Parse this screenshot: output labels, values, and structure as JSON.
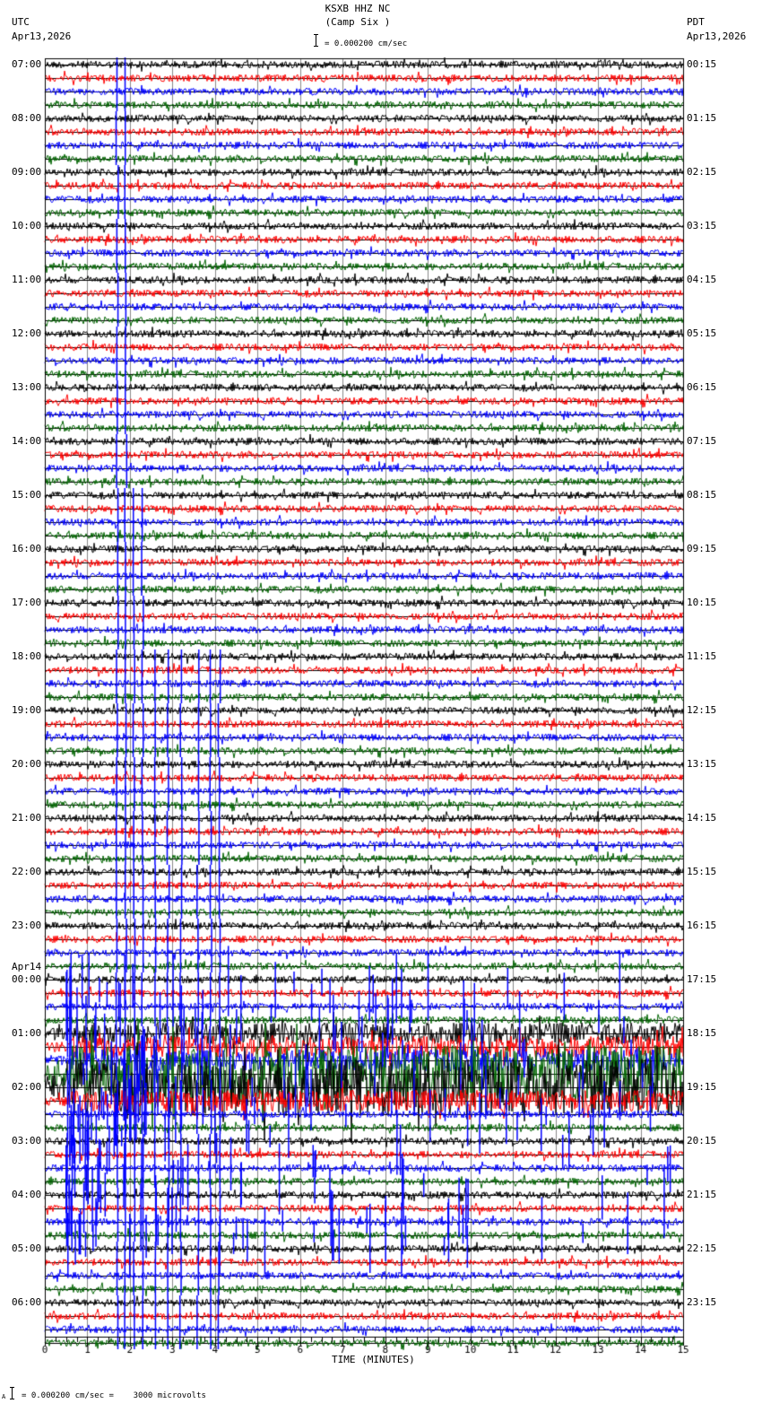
{
  "header": {
    "station": "KSXB HHZ NC",
    "location": "(Camp Six )",
    "scale": "= 0.000200 cm/sec",
    "left_tz": "UTC",
    "left_date": "Apr13,2026",
    "right_tz": "PDT",
    "right_date": "Apr13,2026"
  },
  "footer": {
    "scale_note": "= 0.000200 cm/sec =    3000 microvolts",
    "marker": "A"
  },
  "chart_data": {
    "type": "line",
    "title": "KSXB HHZ NC (Camp Six )",
    "xlabel": "TIME (MINUTES)",
    "ylabel": "",
    "x_ticks": [
      0,
      1,
      2,
      3,
      4,
      5,
      6,
      7,
      8,
      9,
      10,
      11,
      12,
      13,
      14,
      15
    ],
    "xlim": [
      0,
      15
    ],
    "grid": true,
    "trace_colors": [
      "#000000",
      "#ff0000",
      "#0000ff",
      "#006400"
    ],
    "traces_per_hour": 4,
    "left_labels": [
      "07:00",
      "08:00",
      "09:00",
      "10:00",
      "11:00",
      "12:00",
      "13:00",
      "14:00",
      "15:00",
      "16:00",
      "17:00",
      "18:00",
      "19:00",
      "20:00",
      "21:00",
      "22:00",
      "23:00",
      "Apr14 00:00",
      "01:00",
      "02:00",
      "03:00",
      "04:00",
      "05:00",
      "06:00"
    ],
    "right_labels": [
      "00:15",
      "01:15",
      "02:15",
      "03:15",
      "04:15",
      "05:15",
      "06:15",
      "07:15",
      "08:15",
      "09:15",
      "10:15",
      "11:15",
      "12:15",
      "13:15",
      "14:15",
      "15:15",
      "16:15",
      "17:15",
      "18:15",
      "19:15",
      "20:15",
      "21:15",
      "22:15",
      "23:15"
    ],
    "events": [
      {
        "description": "large teleseismic event recorded on blue trace, saturating",
        "start_utc": "01:00",
        "peak_hour_band": "01:00-02:00",
        "max_minute_spread": 15
      },
      {
        "description": "persistent vertical blue spikes at ~1.7-4.2 min across many hours",
        "x_minutes": [
          1.7,
          1.9,
          2.1,
          2.3,
          2.6,
          2.9,
          3.2,
          3.6,
          3.9,
          4.1
        ]
      }
    ],
    "x_axis_label": "TIME (MINUTES)"
  }
}
